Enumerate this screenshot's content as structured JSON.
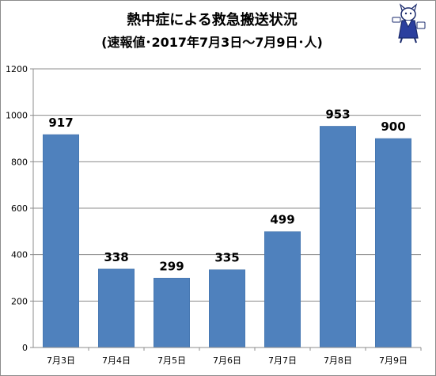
{
  "chart_data": {
    "type": "bar",
    "title": "熱中症による救急搬送状況",
    "subtitle": "(速報値･2017年7月3日～7月9日･人)",
    "categories": [
      "7月3日",
      "7月4日",
      "7月5日",
      "7月6日",
      "7月7日",
      "7月8日",
      "7月9日"
    ],
    "values": [
      917,
      338,
      299,
      335,
      499,
      953,
      900
    ],
    "data_labels": [
      "917",
      "338",
      "299",
      "335",
      "499",
      "953",
      "900"
    ],
    "ylim": [
      0,
      1200
    ],
    "yticks": [
      0,
      200,
      400,
      600,
      800,
      1000,
      1200
    ],
    "ytick_labels": [
      "0",
      "200",
      "400",
      "600",
      "800",
      "1000",
      "1200"
    ],
    "xlabel": "",
    "ylabel": "",
    "grid": true,
    "bar_color": "#4f81bd"
  },
  "mascot_icon": "mascot-cat-icon"
}
